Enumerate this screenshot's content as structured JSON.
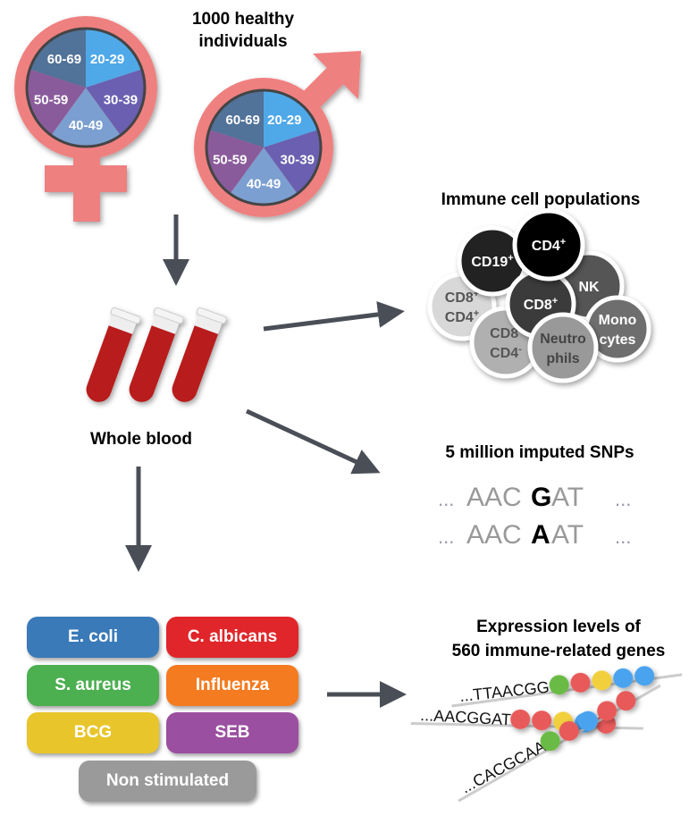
{
  "title": "1000 healthy individuals",
  "title_lines": [
    "1000 healthy",
    "individuals"
  ],
  "age_groups": [
    "20-29",
    "30-39",
    "40-49",
    "50-59",
    "60-69"
  ],
  "age_colors": [
    "#4fa8e8",
    "#6a5fb0",
    "#7b9fd0",
    "#8a5b9b",
    "#517299"
  ],
  "symbol_color": "#ef8080",
  "arrow_color": "#4a4f57",
  "whole_blood": "Whole blood",
  "immune": {
    "title": "Immune cell populations",
    "cells": [
      {
        "label": [
          "CD8",
          "CD4"
        ],
        "sup": [
          "+",
          "+"
        ],
        "fill": "#d8d8d8",
        "text": "#555"
      },
      {
        "label": [
          "CD8",
          "CD4"
        ],
        "sup": [
          "-",
          "-"
        ],
        "fill": "#b0b0b0",
        "text": "#555"
      },
      {
        "label": [
          "CD19"
        ],
        "sup": [
          "+"
        ],
        "fill": "#222222",
        "text": "#fff"
      },
      {
        "label": [
          "NK"
        ],
        "sup": [
          ""
        ],
        "fill": "#555555",
        "text": "#fff"
      },
      {
        "label": [
          "CD8"
        ],
        "sup": [
          "+"
        ],
        "fill": "#3a3a3a",
        "text": "#fff"
      },
      {
        "label": [
          "CD4"
        ],
        "sup": [
          "+"
        ],
        "fill": "#000000",
        "text": "#fff"
      },
      {
        "label": [
          "Mono",
          "cytes"
        ],
        "sup": [
          "",
          ""
        ],
        "fill": "#6e6e6e",
        "text": "#fff"
      },
      {
        "label": [
          "Neutro",
          "phils"
        ],
        "sup": [
          "",
          ""
        ],
        "fill": "#999999",
        "text": "#444"
      }
    ]
  },
  "snps": {
    "title": "5 million imputed SNPs",
    "seq1": {
      "pre": "AAC",
      "snp": "G",
      "post": "AT"
    },
    "seq2": {
      "pre": "AAC",
      "snp": "A",
      "post": "AT"
    },
    "dots": "..."
  },
  "stimuli": [
    {
      "label": "E. coli",
      "color": "#3a7ab8"
    },
    {
      "label": "C. albicans",
      "color": "#e0262a"
    },
    {
      "label": "S. aureus",
      "color": "#4caf50"
    },
    {
      "label": "Influenza",
      "color": "#f47b20"
    },
    {
      "label": "BCG",
      "color": "#e8c52a"
    },
    {
      "label": "SEB",
      "color": "#9b4fa0"
    },
    {
      "label": "Non stimulated",
      "color": "#9a9a9a"
    }
  ],
  "expression": {
    "title_lines": [
      "Expression levels of",
      "560 immune-related genes"
    ],
    "rows": [
      {
        "seq": "...TTAACGG",
        "beads": [
          "#6bbb45",
          "#e85a5a",
          "#f2cf3c",
          "#4aa3ef",
          "#4aa3ef"
        ]
      },
      {
        "seq": "...AACGGAT",
        "beads": [
          "#e85a5a",
          "#e85a5a",
          "#f2cf3c",
          "#4aa3ef",
          "#e85a5a"
        ]
      },
      {
        "seq": "...CACGCAA",
        "beads": [
          "#6bbb45",
          "#e85a5a",
          "#4aa3ef",
          "#e85a5a",
          "#e85a5a"
        ]
      }
    ]
  }
}
